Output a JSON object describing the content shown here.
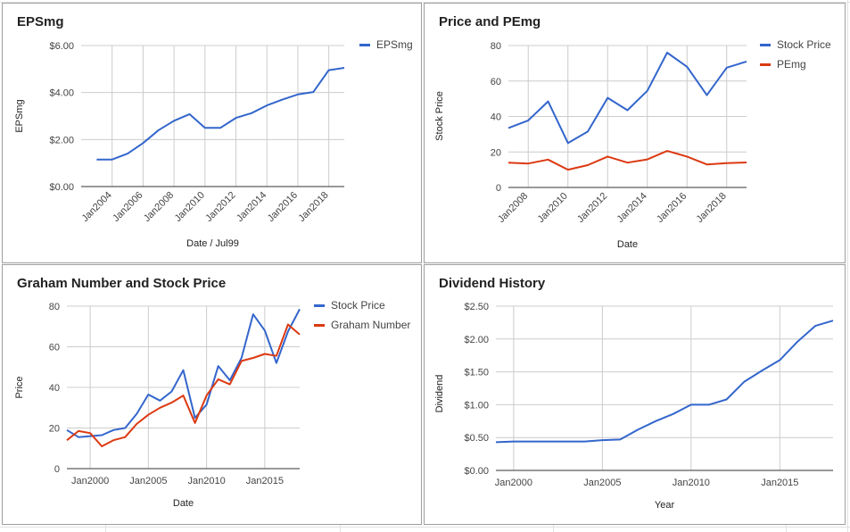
{
  "colors": {
    "blue": "#3366cc",
    "red": "#dc3912",
    "grid": "#cccccc",
    "axis": "#333333",
    "text": "#444444",
    "title": "#222222"
  },
  "chart_data": [
    {
      "type": "line",
      "title": "EPSmg",
      "xlabel": "Date / Jul99",
      "ylabel": "EPSmg",
      "x_type": "year",
      "x_range": [
        2002,
        2019
      ],
      "xticks": [
        2004,
        2006,
        2008,
        2010,
        2012,
        2014,
        2016,
        2018
      ],
      "xtick_labels": [
        "Jan2004",
        "Jan2006",
        "Jan2008",
        "Jan2010",
        "Jan2012",
        "Jan2014",
        "Jan2016",
        "Jan2018"
      ],
      "xtick_rotated": true,
      "ylim": [
        0,
        6
      ],
      "yticks": [
        0,
        2,
        4,
        6
      ],
      "ytick_labels": [
        "$0.00",
        "$2.00",
        "$4.00",
        "$6.00"
      ],
      "grid": true,
      "legend": "right",
      "x": [
        2003,
        2004,
        2005,
        2006,
        2007,
        2008,
        2009,
        2010,
        2011,
        2012,
        2013,
        2014,
        2015,
        2016,
        2017,
        2018,
        2019
      ],
      "series": [
        {
          "name": "EPSmg",
          "color": "#3366cc",
          "values": [
            1.15,
            1.15,
            1.4,
            1.85,
            2.4,
            2.8,
            3.08,
            2.5,
            2.5,
            2.92,
            3.12,
            3.45,
            3.7,
            3.92,
            4.02,
            4.95,
            5.05
          ]
        }
      ]
    },
    {
      "type": "line",
      "title": "Price and PEmg",
      "xlabel": "Date",
      "ylabel": "Stock Price",
      "x_type": "year",
      "x_range": [
        2007,
        2019
      ],
      "xticks": [
        2008,
        2010,
        2012,
        2014,
        2016,
        2018
      ],
      "xtick_labels": [
        "Jan2008",
        "Jan2010",
        "Jan2012",
        "Jan2014",
        "Jan2016",
        "Jan2018"
      ],
      "xtick_rotated": true,
      "ylim": [
        0,
        80
      ],
      "yticks": [
        0,
        20,
        40,
        60,
        80
      ],
      "ytick_labels": [
        "0",
        "20",
        "40",
        "60",
        "80"
      ],
      "grid": true,
      "legend": "right",
      "x": [
        2007,
        2008,
        2009,
        2010,
        2011,
        2012,
        2013,
        2014,
        2015,
        2016,
        2017,
        2018,
        2019
      ],
      "series": [
        {
          "name": "Stock Price",
          "color": "#3366cc",
          "values": [
            33.5,
            37.8,
            48.5,
            25,
            31.5,
            50.5,
            43.5,
            54.5,
            76,
            68,
            52,
            67.5,
            71
          ]
        },
        {
          "name": "PEmg",
          "color": "#dc3912",
          "values": [
            14,
            13.5,
            15.7,
            10,
            12.6,
            17.4,
            14,
            15.8,
            20.6,
            17.4,
            13,
            13.7,
            14.1
          ]
        }
      ]
    },
    {
      "type": "line",
      "title": "Graham Number and Stock Price",
      "xlabel": "Date",
      "ylabel": "Price",
      "x_type": "year",
      "x_range": [
        1998,
        2018
      ],
      "xticks": [
        2000,
        2005,
        2010,
        2015
      ],
      "xtick_labels": [
        "Jan2000",
        "Jan2005",
        "Jan2010",
        "Jan2015"
      ],
      "xtick_rotated": false,
      "ylim": [
        0,
        80
      ],
      "yticks": [
        0,
        20,
        40,
        60,
        80
      ],
      "ytick_labels": [
        "0",
        "20",
        "40",
        "60",
        "80"
      ],
      "grid": true,
      "legend": "right",
      "x": [
        1998,
        1999,
        2000,
        2001,
        2002,
        2003,
        2004,
        2005,
        2006,
        2007,
        2008,
        2009,
        2010,
        2011,
        2012,
        2013,
        2014,
        2015,
        2016,
        2017,
        2018
      ],
      "series": [
        {
          "name": "Stock Price",
          "color": "#3366cc",
          "values": [
            19,
            15.5,
            16,
            16.5,
            19,
            20,
            27,
            36.5,
            33.5,
            38,
            48.5,
            25,
            31.5,
            50.5,
            43.5,
            54.5,
            76,
            68,
            52,
            67.5,
            78.5
          ]
        },
        {
          "name": "Graham Number",
          "color": "#dc3912",
          "values": [
            14,
            18.5,
            17.5,
            11,
            14,
            15.5,
            22,
            26.5,
            30,
            32.5,
            36,
            22.5,
            36,
            44,
            41.5,
            53,
            54.5,
            56.5,
            55.5,
            71,
            66
          ]
        }
      ]
    },
    {
      "type": "line",
      "title": "Dividend History",
      "xlabel": "Year",
      "ylabel": "Dividend",
      "x_type": "year",
      "x_range": [
        1999,
        2018
      ],
      "xticks": [
        2000,
        2005,
        2010,
        2015
      ],
      "xtick_labels": [
        "Jan2000",
        "Jan2005",
        "Jan2010",
        "Jan2015"
      ],
      "xtick_rotated": false,
      "ylim": [
        0,
        2.5
      ],
      "yticks": [
        0,
        0.5,
        1,
        1.5,
        2,
        2.5
      ],
      "ytick_labels": [
        "$0.00",
        "$0.50",
        "$1.00",
        "$1.50",
        "$2.00",
        "$2.50"
      ],
      "grid": true,
      "legend": "none",
      "x": [
        1999,
        2000,
        2001,
        2002,
        2003,
        2004,
        2005,
        2006,
        2007,
        2008,
        2009,
        2010,
        2011,
        2012,
        2013,
        2014,
        2015,
        2016,
        2017,
        2018
      ],
      "series": [
        {
          "name": "",
          "color": "#3366cc",
          "values": [
            0.43,
            0.44,
            0.44,
            0.44,
            0.44,
            0.44,
            0.46,
            0.47,
            0.62,
            0.75,
            0.86,
            1.0,
            1.0,
            1.08,
            1.35,
            1.52,
            1.68,
            1.96,
            2.2,
            2.28
          ]
        }
      ]
    }
  ]
}
